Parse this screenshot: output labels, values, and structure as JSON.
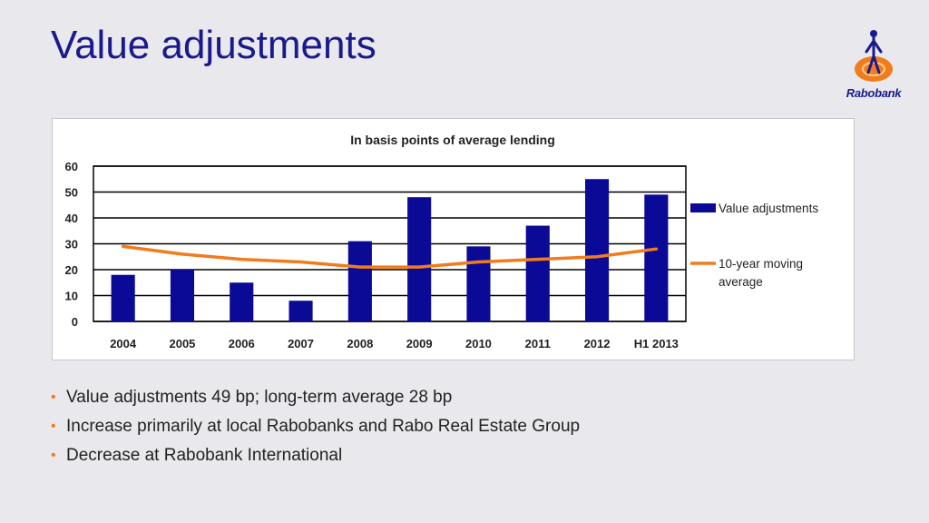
{
  "slide": {
    "title": "Value adjustments",
    "brand": "Rabobank"
  },
  "colors": {
    "title": "#1a1a8c",
    "bar": "#0a0a96",
    "line": "#f07c1e",
    "bullet": "#f07c1e",
    "background": "#e9e8ec"
  },
  "chart_data": {
    "type": "bar",
    "title": "In basis points of average lending",
    "xlabel": "",
    "ylabel": "",
    "categories": [
      "2004",
      "2005",
      "2006",
      "2007",
      "2008",
      "2009",
      "2010",
      "2011",
      "2012",
      "H1 2013"
    ],
    "series": [
      {
        "name": "Value adjustments",
        "type": "bar",
        "values": [
          18,
          20,
          15,
          8,
          31,
          48,
          29,
          37,
          55,
          49
        ]
      },
      {
        "name": "10-year moving average",
        "type": "line",
        "values": [
          29,
          26,
          24,
          23,
          21,
          21,
          23,
          24,
          25,
          28
        ]
      }
    ],
    "ylim": [
      0,
      60
    ],
    "yticks": [
      0,
      10,
      20,
      30,
      40,
      50,
      60
    ],
    "grid": true,
    "legend": "right"
  },
  "bullets": [
    "Value adjustments 49 bp; long-term average 28 bp",
    "Increase primarily at local Rabobanks and Rabo Real Estate Group",
    "Decrease at Rabobank International"
  ]
}
